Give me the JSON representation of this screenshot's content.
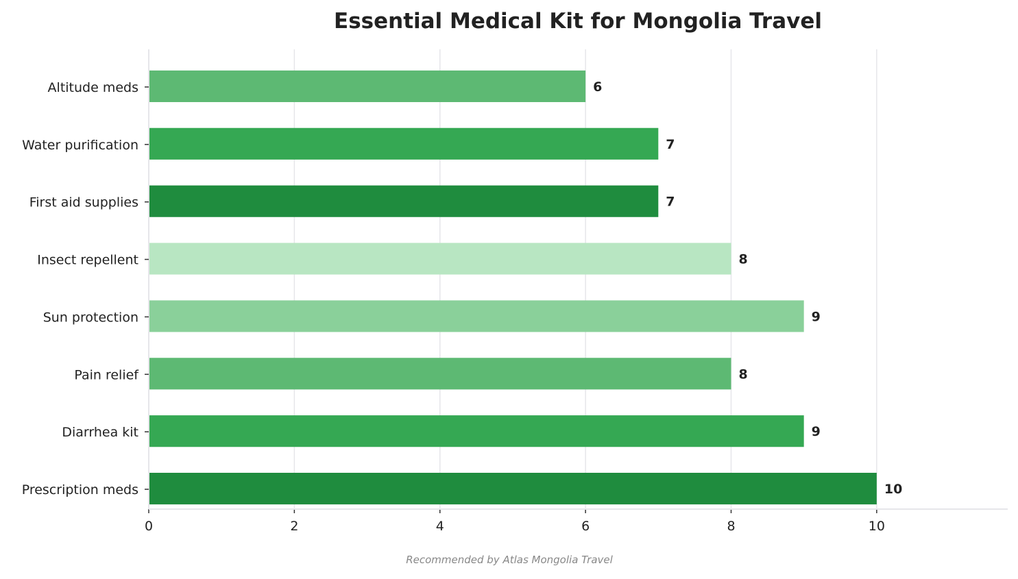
{
  "chart_data": {
    "type": "bar",
    "orientation": "horizontal",
    "title": "Essential Medical Kit for Mongolia Travel",
    "footer": "Recommended by Atlas Mongolia Travel",
    "xlabel": "",
    "ylabel": "",
    "categories": [
      "Altitude meds",
      "Water purification",
      "First aid supplies",
      "Insect repellent",
      "Sun protection",
      "Pain relief",
      "Diarrhea kit",
      "Prescription meds"
    ],
    "values": [
      6,
      7,
      7,
      8,
      9,
      8,
      9,
      10
    ],
    "colors": [
      "#5db973",
      "#35a853",
      "#1f8c3e",
      "#b8e6c2",
      "#8ad09a",
      "#5db973",
      "#35a853",
      "#1f8c3e"
    ],
    "xlim": [
      0,
      11.8
    ],
    "xticks": [
      0,
      2,
      4,
      6,
      8,
      10
    ],
    "grid": "vertical",
    "data_labels": true
  }
}
